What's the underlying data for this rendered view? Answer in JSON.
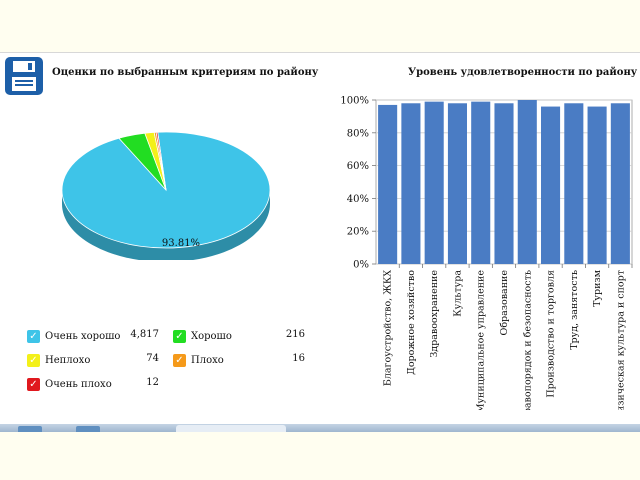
{
  "header": {
    "cutoff_text": ""
  },
  "left_panel": {
    "title": "Оценки по выбранным критериям по району",
    "save_icon": "floppy-disk-icon"
  },
  "right_panel": {
    "title": "Уровень удовлетворенности по району"
  },
  "legend": {
    "items": [
      {
        "label": "Очень хорошо",
        "value": "4,817",
        "color": "#3ec4e8",
        "icon": "check-icon"
      },
      {
        "label": "Хорошо",
        "value": "216",
        "color": "#22dd22",
        "icon": "check-icon"
      },
      {
        "label": "Неплохо",
        "value": "74",
        "color": "#f3f01a",
        "icon": "check-icon"
      },
      {
        "label": "Плохо",
        "value": "16",
        "color": "#f59a1a",
        "icon": "check-icon"
      },
      {
        "label": "Очень плохо",
        "value": "12",
        "color": "#e0181e",
        "icon": "check-icon"
      }
    ]
  },
  "chart_data": [
    {
      "type": "pie",
      "title": "Оценки по выбранным критериям по району",
      "categories": [
        "Очень хорошо",
        "Хорошо",
        "Неплохо",
        "Плохо",
        "Очень плохо"
      ],
      "values": [
        4817,
        216,
        74,
        16,
        12
      ],
      "colors": [
        "#3ec4e8",
        "#22dd22",
        "#f3f01a",
        "#f59a1a",
        "#e0181e"
      ],
      "data_labels": [
        "93.81%"
      ],
      "style": "3d"
    },
    {
      "type": "bar",
      "title": "Уровень удовлетворенности по району",
      "categories": [
        "Благоустройство, ЖКХ",
        "Дорожное хозяйство",
        "Здравоохранение",
        "Культура",
        "Муниципальное управление",
        "Образование",
        "Правопорядок и безопасность",
        "Производство и торговля",
        "Труд, занятость",
        "Туризм",
        "Физическая культура и спорт"
      ],
      "values": [
        97,
        98,
        99,
        98,
        99,
        98,
        100,
        96,
        98,
        96,
        98
      ],
      "ylim": [
        0,
        100
      ],
      "yticks": [
        "0%",
        "20%",
        "40%",
        "60%",
        "80%",
        "100%"
      ],
      "color": "#4a7cc4",
      "grid": true
    }
  ]
}
